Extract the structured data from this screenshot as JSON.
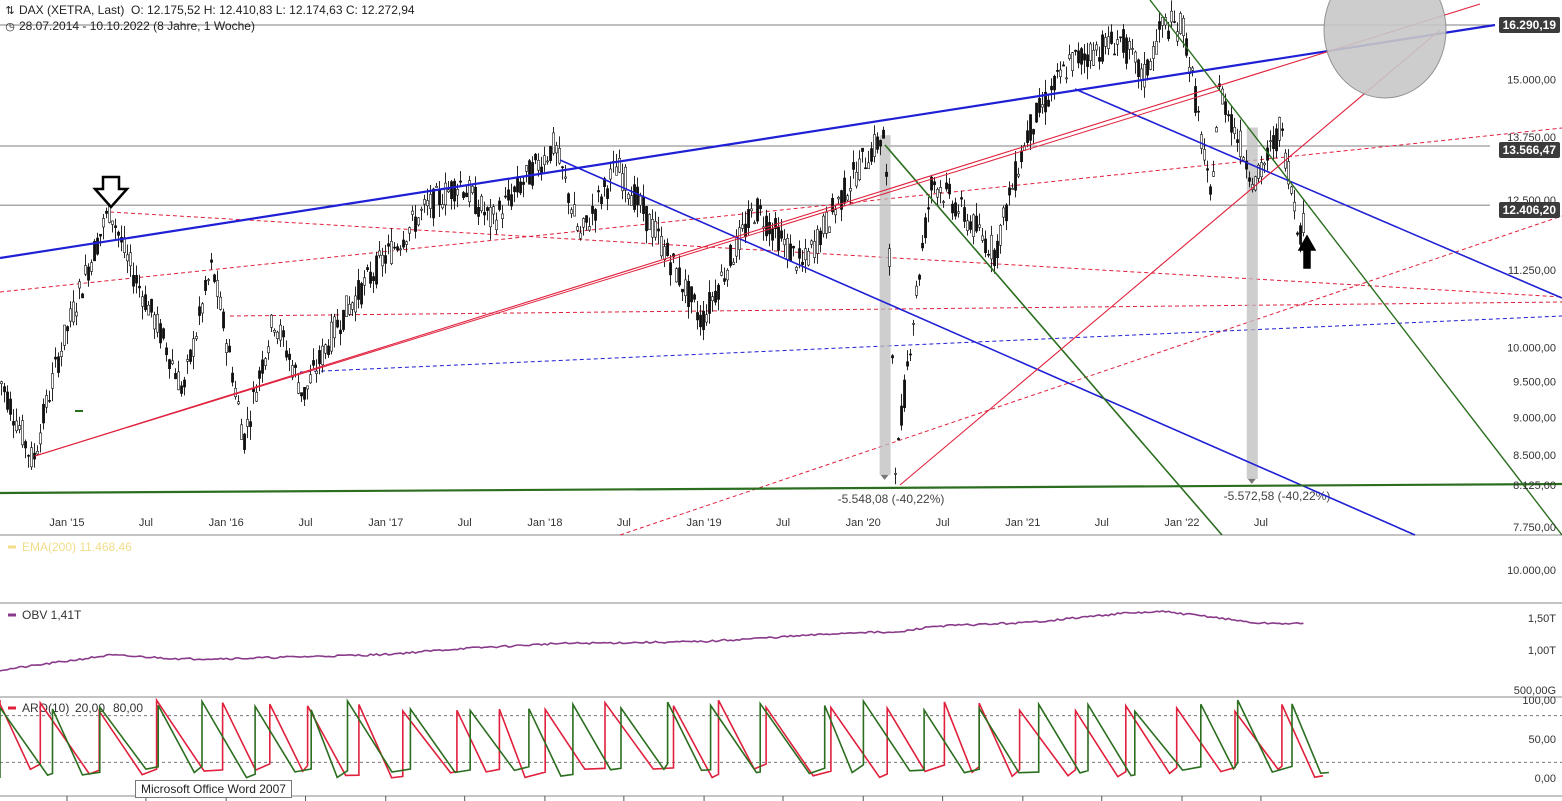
{
  "header": {
    "instrument": "DAX (XETRA, Last)",
    "ohlc": "O: 12.175,52  H: 12.410,83  L: 12.174,63  C: 12.272,94",
    "range": "28.07.2014 - 10.10.2022  (8 Jahre, 1 Woche)"
  },
  "price_tags": [
    "16.290,19",
    "13.566,47",
    "12.406,20"
  ],
  "tooltip": "Microsoft Office Word 2007",
  "colors": {
    "trend_blue": "#1f1fd6",
    "trend_red": "#e0203c",
    "trend_green": "#2b6e1f",
    "indicator_purple": "#8a3a8a",
    "aroon_up": "#2b6e1f",
    "aroon_down": "#e0203c"
  },
  "chart_data": [
    {
      "type": "candlestick",
      "title": "DAX (XETRA, Last)",
      "x_tick_labels": [
        "Jan '15",
        "Jul",
        "Jan '16",
        "Jul",
        "Jan '17",
        "Jul",
        "Jan '18",
        "Jul",
        "Jan '19",
        "Jul",
        "Jan '20",
        "Jul",
        "Jan '21",
        "Jul",
        "Jan '22",
        "Jul"
      ],
      "y_tick_labels": [
        "15.000,00",
        "13.750,00",
        "12.500,00",
        "11.250,00",
        "10.000,00",
        "9.500,00",
        "9.000,00",
        "8.500,00",
        "8.125,00",
        "7.750,00"
      ],
      "price_path": [
        [
          "2014-07-28",
          9600
        ],
        [
          "2014-10-15",
          8400
        ],
        [
          "2014-12-15",
          9900
        ],
        [
          "2015-04-10",
          12350
        ],
        [
          "2015-05-20",
          11400
        ],
        [
          "2015-08-24",
          9900
        ],
        [
          "2015-09-25",
          9350
        ],
        [
          "2015-11-30",
          11300
        ],
        [
          "2016-02-11",
          8700
        ],
        [
          "2016-04-20",
          10450
        ],
        [
          "2016-06-27",
          9300
        ],
        [
          "2016-09-15",
          10400
        ],
        [
          "2016-12-30",
          11450
        ],
        [
          "2017-03-30",
          12300
        ],
        [
          "2017-06-20",
          12850
        ],
        [
          "2017-09-01",
          12100
        ],
        [
          "2018-01-23",
          13580
        ],
        [
          "2018-03-23",
          11800
        ],
        [
          "2018-06-15",
          13150
        ],
        [
          "2018-12-27",
          10400
        ],
        [
          "2019-04-30",
          12350
        ],
        [
          "2019-08-15",
          11300
        ],
        [
          "2019-12-31",
          13250
        ],
        [
          "2020-02-19",
          13790
        ],
        [
          "2020-03-16",
          8250
        ],
        [
          "2020-06-08",
          12900
        ],
        [
          "2020-10-30",
          11550
        ],
        [
          "2021-01-15",
          13900
        ],
        [
          "2021-04-20",
          15400
        ],
        [
          "2021-08-13",
          15950
        ],
        [
          "2021-10-05",
          15000
        ],
        [
          "2021-11-18",
          16290
        ],
        [
          "2022-01-05",
          16250
        ],
        [
          "2022-03-07",
          12450
        ],
        [
          "2022-03-29",
          14800
        ],
        [
          "2022-05-15",
          13600
        ],
        [
          "2022-06-20",
          12800
        ],
        [
          "2022-08-15",
          13950
        ],
        [
          "2022-09-29",
          11860
        ],
        [
          "2022-10-10",
          12273
        ]
      ],
      "annotations": [
        "-5.548,08 (-40,22%)",
        "-5.572,58 (-40,22%)"
      ]
    },
    {
      "type": "line",
      "series": [
        {
          "name": "EMA(200)",
          "last_value": "11.468,46"
        }
      ],
      "y_tick_labels": [
        "10.000,00"
      ]
    },
    {
      "type": "line",
      "series": [
        {
          "name": "OBV 1,41T",
          "values_tril": [
            [
              "2014-07-28",
              0.68
            ],
            [
              "2015-04-10",
              0.92
            ],
            [
              "2015-09-25",
              0.86
            ],
            [
              "2016-02-11",
              0.87
            ],
            [
              "2016-12-30",
              0.93
            ],
            [
              "2017-06-20",
              1.02
            ],
            [
              "2018-01-23",
              1.1
            ],
            [
              "2018-12-27",
              1.13
            ],
            [
              "2019-12-31",
              1.28
            ],
            [
              "2020-03-16",
              1.27
            ],
            [
              "2020-06-08",
              1.37
            ],
            [
              "2021-01-15",
              1.43
            ],
            [
              "2021-08-13",
              1.57
            ],
            [
              "2021-11-18",
              1.6
            ],
            [
              "2022-03-07",
              1.52
            ],
            [
              "2022-06-20",
              1.42
            ],
            [
              "2022-10-10",
              1.41
            ]
          ]
        }
      ],
      "y_tick_labels": [
        "1,50T",
        "1,00T",
        "500,00G"
      ]
    },
    {
      "type": "line",
      "series": [
        {
          "name": "ARO(10)"
        },
        {
          "name": "20,00"
        },
        {
          "name": "80,00"
        }
      ],
      "y_tick_labels": [
        "100,00",
        "50,00",
        "0,00"
      ],
      "ylim": [
        0,
        100
      ]
    }
  ]
}
